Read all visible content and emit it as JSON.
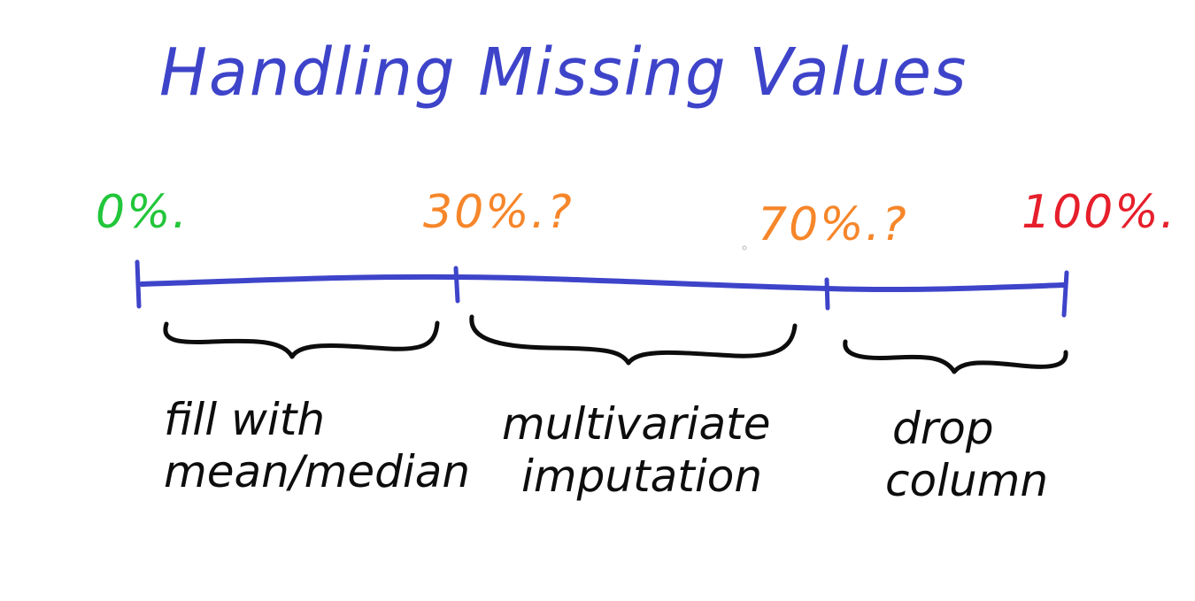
{
  "title": "Handling Missing Values",
  "colors": {
    "title": "#3e44c9",
    "axis": "#3e44c9",
    "green": "#22c63a",
    "orange": "#f6862a",
    "red": "#e61f2b",
    "text": "#0d0d0d"
  },
  "markers": [
    {
      "label": "0%.",
      "color": "#22c63a"
    },
    {
      "label": "30%.?",
      "color": "#f6862a"
    },
    {
      "label": "70%.?",
      "color": "#f6862a"
    },
    {
      "label": "100%.",
      "color": "#e61f2b"
    }
  ],
  "ranges": [
    {
      "line1": "fill with",
      "line2": "mean/median"
    },
    {
      "line1": "multivariate",
      "line2": "imputation"
    },
    {
      "line1": "drop",
      "line2": "column"
    }
  ]
}
